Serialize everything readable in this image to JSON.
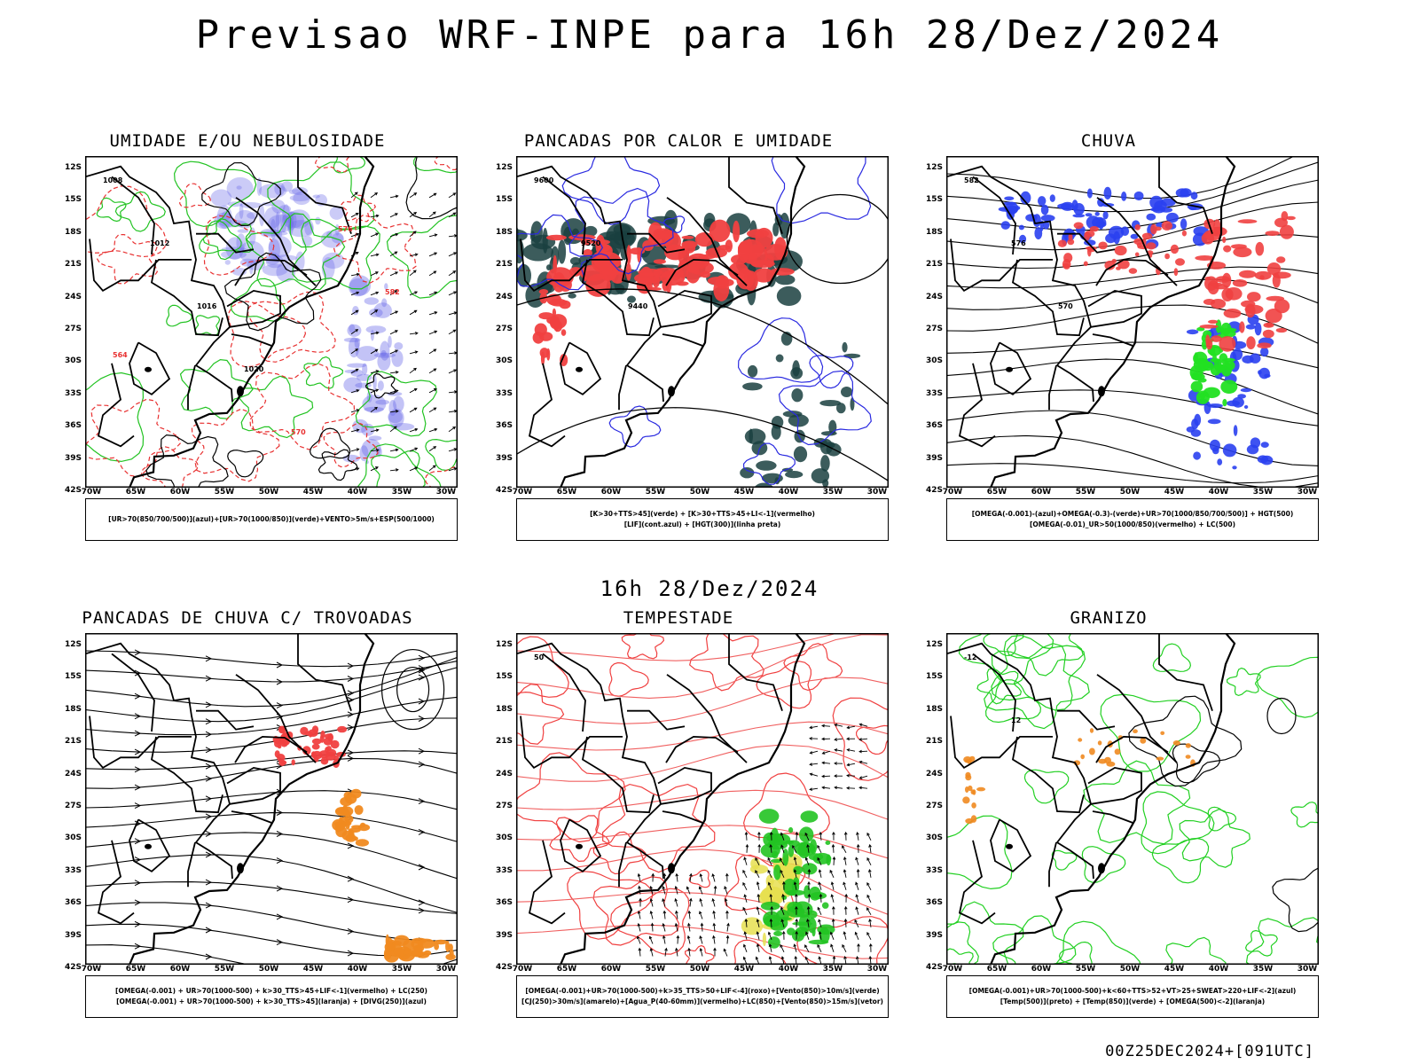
{
  "header": {
    "title": "Previsao WRF-INPE  para 16h 28/Dez/2024",
    "subtitle": "16h 28/Dez/2024",
    "footer": "00Z25DEC2024+[091UTC]"
  },
  "axes": {
    "lat_labels": [
      "12S",
      "15S",
      "18S",
      "21S",
      "24S",
      "27S",
      "30S",
      "33S",
      "36S",
      "39S",
      "42S"
    ],
    "lon_labels": [
      "70W",
      "65W",
      "60W",
      "55W",
      "50W",
      "45W",
      "40W",
      "35W",
      "30W"
    ]
  },
  "panels": [
    {
      "title": "UMIDADE E/OU NEBULOSIDADE",
      "legend": [
        "[UR>70(850/700/500)](azul)+[UR>70(1000/850)](verde)+VENTO>5m/s+ESP(500/1000)"
      ],
      "contour_labels": [
        "1008",
        "1012",
        "1016",
        "1020",
        "570",
        "576",
        "582",
        "564"
      ]
    },
    {
      "title": "PANCADAS POR CALOR E UMIDADE",
      "legend": [
        "[K>30+TTS>45](verde) + [K>30+TTS>45+LI<-1](vermelho)",
        "[LIF](cont.azul) + [HGT(300)](linha preta)"
      ],
      "contour_labels": [
        "9600",
        "9520",
        "9440"
      ]
    },
    {
      "title": "CHUVA",
      "legend": [
        "[OMEGA(-0.001)-(azul)+OMEGA(-0.3)-(verde)+UR>70(1000/850/700/500)] + HGT(500)",
        "[OMEGA(-0.01)_UR>50(1000/850)(vermelho) + LC(500)"
      ],
      "contour_labels": [
        "582",
        "576",
        "570"
      ]
    },
    {
      "title": "PANCADAS DE CHUVA C/ TROVOADAS",
      "legend": [
        "[OMEGA(-0.001) + UR>70(1000-500) + k>30_TTS>45+LIF<-1](vermelho) + LC(250)",
        "[OMEGA(-0.001) + UR>70(1000-500) + k>30_TTS>45](laranja) + [DIVG(250)](azul)"
      ],
      "contour_labels": []
    },
    {
      "title": "TEMPESTADE",
      "legend": [
        "[OMEGA(-0.001)+UR>70(1000-500)+k>35_TTS>50+LIF<-4](roxo)+[Vento(850)>10m/s](verde)",
        "[CJ(250)>30m/s](amarelo)+[Agua_P(40-60mm)](vermelho)+LC(850)+[Vento(850)>15m/s](vetor)"
      ],
      "contour_labels": [
        "50"
      ]
    },
    {
      "title": "GRANIZO",
      "legend": [
        "[OMEGA(-0.001)+UR>70(1000-500)+k<60+TTS>52+VT>25+SWEAT>220+LIF<-2](azul)",
        "[Temp(500)](preto) + [Temp(850)](verde) + [OMEGA(500)<-2](laranja)"
      ],
      "contour_labels": [
        "-12",
        "12"
      ]
    }
  ]
}
